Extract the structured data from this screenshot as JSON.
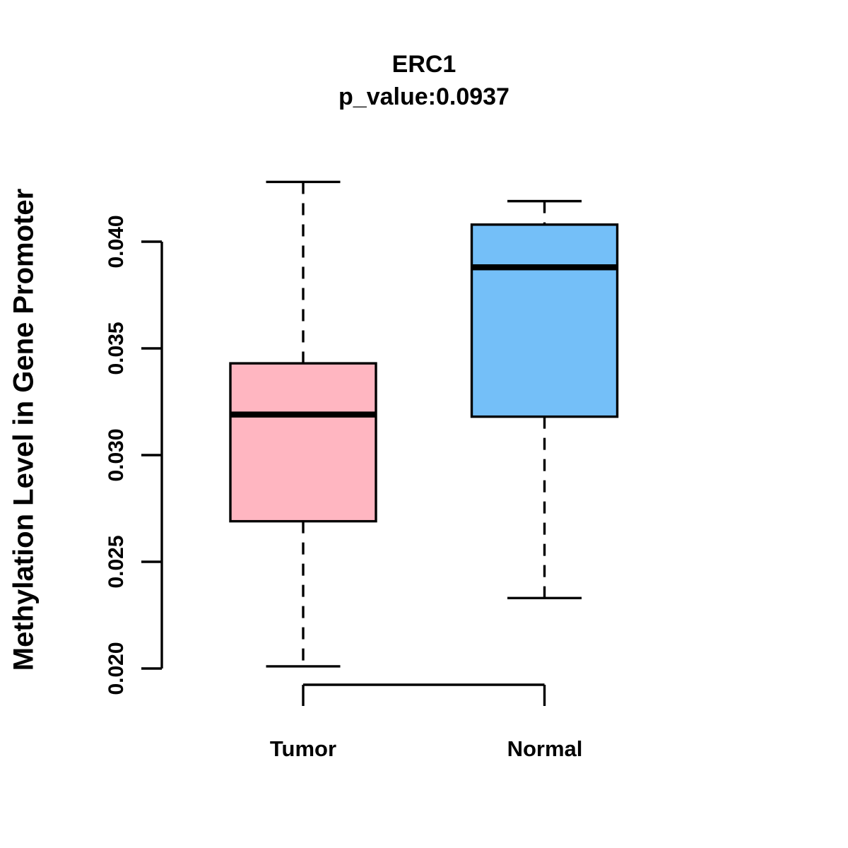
{
  "title": {
    "line1": "ERC1",
    "line2": "p_value:0.0937"
  },
  "ylabel": "Methylation Level in Gene Promoter",
  "colors": {
    "tumor_fill": "#FFB6C1",
    "normal_fill": "#74BFF8",
    "line": "#000000",
    "background": "#FFFFFF"
  },
  "chart_data": {
    "type": "boxplot",
    "title": "ERC1",
    "subtitle": "p_value:0.0937",
    "ylabel": "Methylation Level in Gene Promoter",
    "xlabel": "",
    "categories": [
      "Tumor",
      "Normal"
    ],
    "y_ticks": [
      {
        "value": 0.02,
        "label": "0.020"
      },
      {
        "value": 0.025,
        "label": "0.025"
      },
      {
        "value": 0.03,
        "label": "0.030"
      },
      {
        "value": 0.035,
        "label": "0.035"
      },
      {
        "value": 0.04,
        "label": "0.040"
      }
    ],
    "ylim": [
      0.02,
      0.04
    ],
    "grid": false,
    "legend": "none",
    "series": [
      {
        "name": "Tumor",
        "fill": "#FFB6C1",
        "whisker_low": 0.0201,
        "q1": 0.0269,
        "median": 0.0319,
        "q3": 0.0343,
        "whisker_high": 0.0428
      },
      {
        "name": "Normal",
        "fill": "#74BFF8",
        "whisker_low": 0.0233,
        "q1": 0.0318,
        "median": 0.0388,
        "q3": 0.0408,
        "whisker_high": 0.0419
      }
    ]
  }
}
